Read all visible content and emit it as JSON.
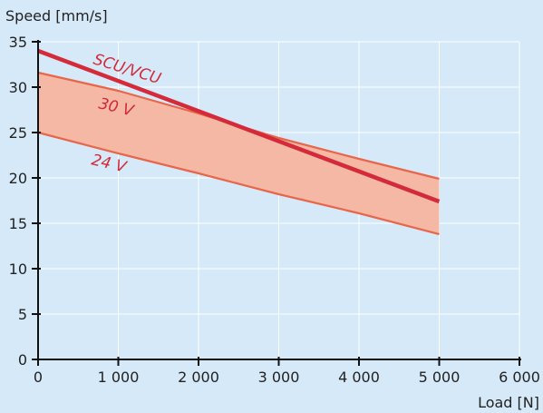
{
  "chart_data": {
    "type": "line",
    "title": "",
    "xlabel": "Load [N]",
    "ylabel": "Speed [mm/s]",
    "xlim": [
      0,
      6000
    ],
    "ylim": [
      0,
      35
    ],
    "x_ticks": [
      0,
      1000,
      2000,
      3000,
      4000,
      5000,
      6000
    ],
    "x_tick_labels": [
      "0",
      "1 000",
      "2 000",
      "3 000",
      "4 000",
      "5 000",
      "6 000"
    ],
    "y_ticks": [
      0,
      5,
      10,
      15,
      20,
      25,
      30,
      35
    ],
    "y_tick_labels": [
      "0",
      "5",
      "10",
      "15",
      "20",
      "25",
      "30",
      "35"
    ],
    "grid": true,
    "band": {
      "upper_series": "30 V",
      "lower_series": "24 V",
      "fill": "#f4b8a5"
    },
    "series": [
      {
        "name": "30 V",
        "color": "#e8664a",
        "x": [
          0,
          1000,
          2000,
          3000,
          4000,
          5000
        ],
        "y": [
          31.6,
          29.6,
          27.1,
          24.4,
          22.1,
          19.9
        ]
      },
      {
        "name": "24 V",
        "color": "#e8664a",
        "x": [
          0,
          1000,
          2000,
          3000,
          4000,
          5000
        ],
        "y": [
          25.0,
          22.7,
          20.5,
          18.2,
          16.1,
          13.8
        ]
      },
      {
        "name": "SCU/VCU",
        "color": "#d42a3a",
        "x": [
          0,
          5000
        ],
        "y": [
          34.0,
          17.4
        ]
      }
    ]
  }
}
